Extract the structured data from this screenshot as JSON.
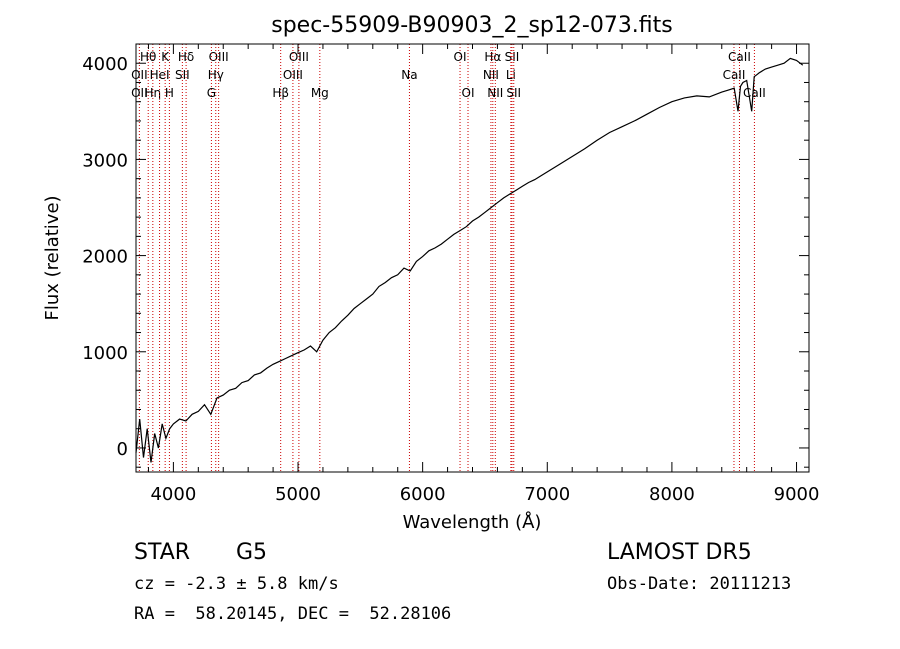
{
  "chart_data": {
    "type": "line",
    "title": "spec-55909-B90903_2_sp12-073.fits",
    "xlabel": "Wavelength (Å)",
    "ylabel": "Flux (relative)",
    "xlim": [
      3700,
      9100
    ],
    "ylim": [
      -250,
      4200
    ],
    "xticks": [
      4000,
      5000,
      6000,
      7000,
      8000,
      9000
    ],
    "yticks": [
      0,
      1000,
      2000,
      3000,
      4000
    ],
    "grid": false,
    "line_color": "#000000",
    "marker_color": "#cc0000",
    "spectrum": {
      "x": [
        3700,
        3730,
        3760,
        3790,
        3820,
        3850,
        3880,
        3910,
        3940,
        3970,
        4000,
        4050,
        4100,
        4150,
        4200,
        4250,
        4300,
        4350,
        4400,
        4450,
        4500,
        4550,
        4600,
        4650,
        4700,
        4750,
        4800,
        4850,
        4900,
        4950,
        5000,
        5050,
        5100,
        5150,
        5200,
        5250,
        5300,
        5350,
        5400,
        5450,
        5500,
        5550,
        5600,
        5650,
        5700,
        5750,
        5800,
        5850,
        5900,
        5950,
        6000,
        6050,
        6100,
        6150,
        6200,
        6250,
        6300,
        6350,
        6400,
        6450,
        6500,
        6550,
        6600,
        6650,
        6700,
        6750,
        6800,
        6850,
        6900,
        6950,
        7000,
        7100,
        7200,
        7300,
        7400,
        7500,
        7600,
        7700,
        7800,
        7900,
        8000,
        8100,
        8200,
        8300,
        8400,
        8450,
        8500,
        8530,
        8550,
        8570,
        8600,
        8640,
        8660,
        8680,
        8700,
        8750,
        8800,
        8850,
        8900,
        8950,
        9000,
        9050
      ],
      "y": [
        -50,
        300,
        -100,
        200,
        -150,
        150,
        0,
        250,
        100,
        200,
        250,
        300,
        280,
        350,
        380,
        450,
        350,
        520,
        550,
        600,
        620,
        680,
        700,
        760,
        780,
        830,
        870,
        900,
        930,
        960,
        990,
        1020,
        1060,
        1000,
        1120,
        1200,
        1250,
        1320,
        1380,
        1450,
        1500,
        1550,
        1600,
        1680,
        1720,
        1770,
        1800,
        1870,
        1840,
        1940,
        1990,
        2050,
        2080,
        2120,
        2170,
        2220,
        2260,
        2300,
        2360,
        2400,
        2450,
        2500,
        2550,
        2600,
        2640,
        2680,
        2720,
        2760,
        2790,
        2830,
        2870,
        2950,
        3030,
        3110,
        3200,
        3280,
        3340,
        3400,
        3470,
        3540,
        3600,
        3640,
        3660,
        3650,
        3700,
        3720,
        3740,
        3500,
        3760,
        3800,
        3820,
        3500,
        3860,
        3880,
        3900,
        3940,
        3960,
        3980,
        4000,
        4050,
        4030,
        3980
      ]
    },
    "lines": [
      {
        "label": "Hθ",
        "x": 3798,
        "row": 0
      },
      {
        "label": "OII",
        "x": 3727,
        "row": 1
      },
      {
        "label": "OII",
        "x": 3727,
        "row": 2
      },
      {
        "label": "Hη",
        "x": 3835,
        "row": 2
      },
      {
        "label": "HeI",
        "x": 3889,
        "row": 1
      },
      {
        "label": "K",
        "x": 3934,
        "row": 0
      },
      {
        "label": "H",
        "x": 3968,
        "row": 2
      },
      {
        "label": "Hδ",
        "x": 4102,
        "row": 0
      },
      {
        "label": "SII",
        "x": 4072,
        "row": 1
      },
      {
        "label": "OIII",
        "x": 4363,
        "row": 0
      },
      {
        "label": "Hγ",
        "x": 4340,
        "row": 1
      },
      {
        "label": "G",
        "x": 4305,
        "row": 2
      },
      {
        "label": "OIII",
        "x": 5007,
        "row": 0
      },
      {
        "label": "OIII",
        "x": 4959,
        "row": 1
      },
      {
        "label": "Hβ",
        "x": 4861,
        "row": 2
      },
      {
        "label": "Mg",
        "x": 5175,
        "row": 2
      },
      {
        "label": "Na",
        "x": 5894,
        "row": 1
      },
      {
        "label": "OI",
        "x": 6300,
        "row": 0
      },
      {
        "label": "OI",
        "x": 6364,
        "row": 2
      },
      {
        "label": "Hα",
        "x": 6563,
        "row": 0
      },
      {
        "label": "SII",
        "x": 6717,
        "row": 0
      },
      {
        "label": "NII",
        "x": 6548,
        "row": 1
      },
      {
        "label": "Li",
        "x": 6708,
        "row": 1
      },
      {
        "label": "NII",
        "x": 6583,
        "row": 2
      },
      {
        "label": "SII",
        "x": 6731,
        "row": 2
      },
      {
        "label": "CaII",
        "x": 8542,
        "row": 0
      },
      {
        "label": "CaII",
        "x": 8498,
        "row": 1
      },
      {
        "label": "CaII",
        "x": 8662,
        "row": 2
      }
    ]
  },
  "info": {
    "object_class": "STAR",
    "subclass": "G5",
    "survey": "LAMOST DR5",
    "redshift": "cz = -2.3 ± 5.8 km/s",
    "obs_date": "Obs-Date: 20111213",
    "coords": "RA =  58.20145, DEC =  52.28106"
  }
}
